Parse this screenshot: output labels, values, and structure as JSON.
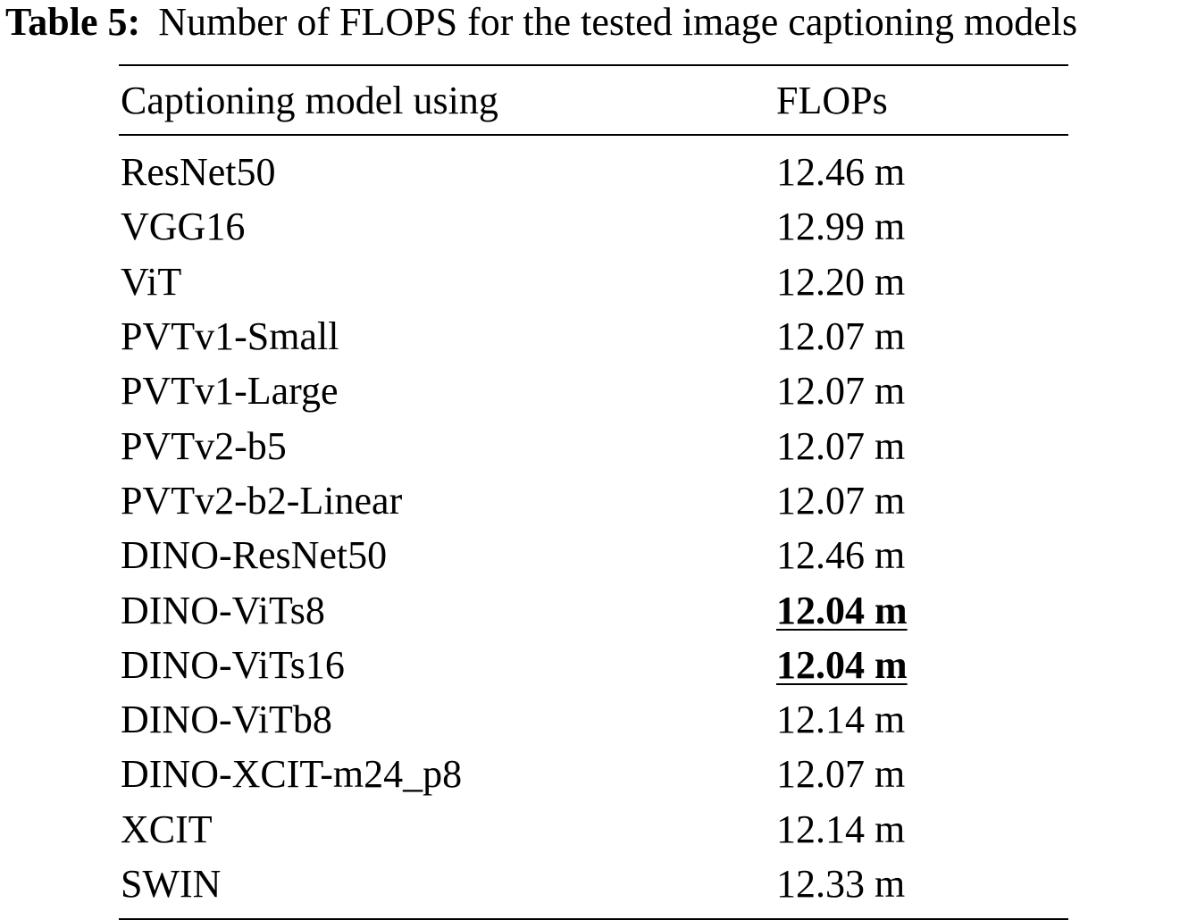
{
  "caption": {
    "label": "Table 5:",
    "text": "Number of FLOPS for the tested image captioning models"
  },
  "table": {
    "headers": {
      "model": "Captioning model using",
      "flops": "FLOPs"
    },
    "rows": [
      {
        "model": "ResNet50",
        "flops": "12.46 m",
        "best": false
      },
      {
        "model": "VGG16",
        "flops": "12.99 m",
        "best": false
      },
      {
        "model": "ViT",
        "flops": "12.20 m",
        "best": false
      },
      {
        "model": "PVTv1-Small",
        "flops": "12.07 m",
        "best": false
      },
      {
        "model": "PVTv1-Large",
        "flops": "12.07 m",
        "best": false
      },
      {
        "model": "PVTv2-b5",
        "flops": "12.07 m",
        "best": false
      },
      {
        "model": "PVTv2-b2-Linear",
        "flops": "12.07 m",
        "best": false
      },
      {
        "model": "DINO-ResNet50",
        "flops": "12.46 m",
        "best": false
      },
      {
        "model": "DINO-ViTs8",
        "flops": "12.04 m",
        "best": true
      },
      {
        "model": "DINO-ViTs16",
        "flops": "12.04 m",
        "best": true
      },
      {
        "model": "DINO-ViTb8",
        "flops": "12.14 m",
        "best": false
      },
      {
        "model": "DINO-XCIT-m24_p8",
        "flops": "12.07 m",
        "best": false
      },
      {
        "model": "XCIT",
        "flops": "12.14 m",
        "best": false
      },
      {
        "model": "SWIN",
        "flops": "12.33 m",
        "best": false
      }
    ]
  }
}
